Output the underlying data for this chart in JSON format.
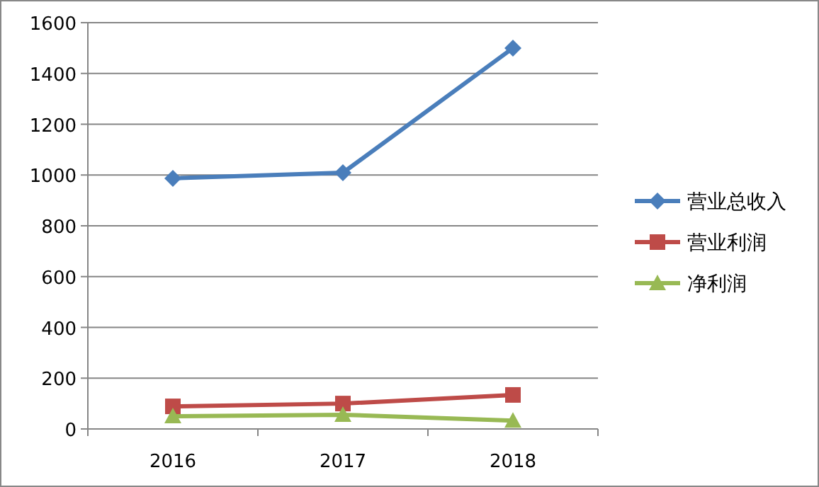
{
  "chart_data": {
    "type": "line",
    "categories": [
      "2016",
      "2017",
      "2018"
    ],
    "series": [
      {
        "name": "营业总收入",
        "color": "#4a7ebb",
        "marker": "diamond",
        "values": [
          987,
          1009,
          1500
        ]
      },
      {
        "name": "营业利润",
        "color": "#be4b48",
        "marker": "square",
        "values": [
          89,
          100,
          134
        ]
      },
      {
        "name": "净利润",
        "color": "#98b954",
        "marker": "triangle",
        "values": [
          50,
          56,
          33
        ]
      }
    ],
    "ylim": [
      0,
      1600
    ],
    "yticks": [
      0,
      200,
      400,
      600,
      800,
      1000,
      1200,
      1400,
      1600
    ],
    "grid": "y",
    "legend": "right"
  }
}
